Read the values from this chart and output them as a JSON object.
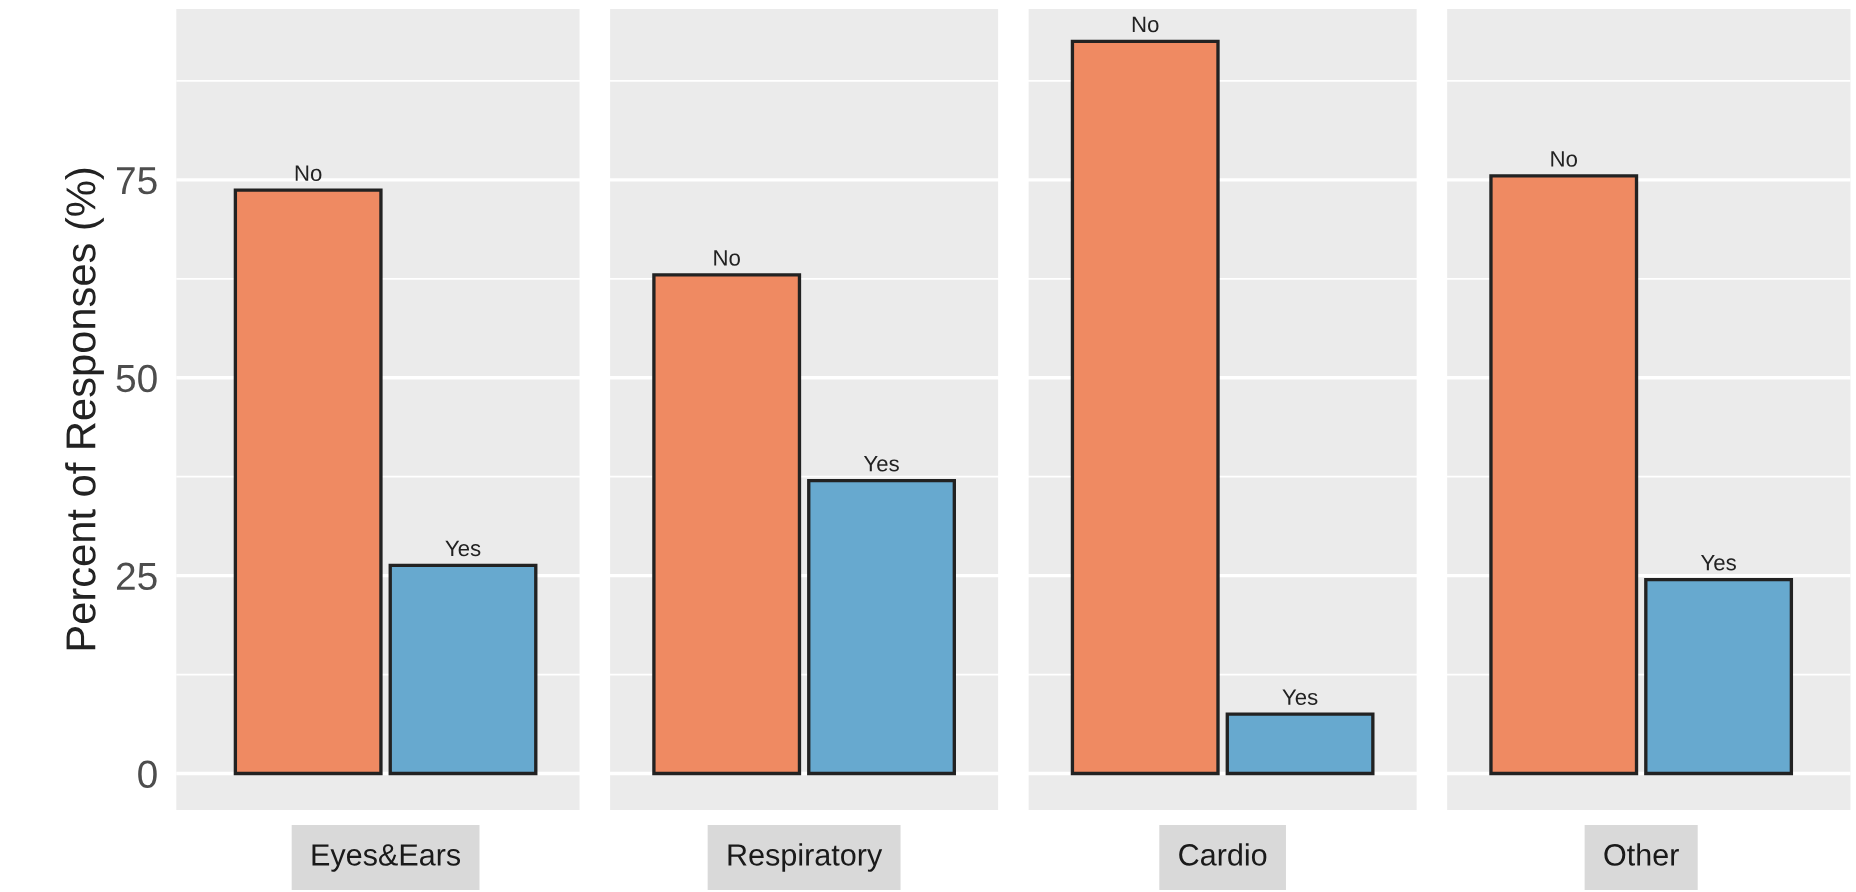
{
  "chart_data": {
    "type": "bar",
    "ylabel": "Percent of Responses (%)",
    "categories": [
      "Eyes&Ears",
      "Respiratory",
      "Cardio",
      "Other"
    ],
    "series": [
      {
        "name": "No",
        "color": "#ef8a62",
        "values": [
          73.7,
          63,
          92.5,
          75.5
        ]
      },
      {
        "name": "Yes",
        "color": "#67a9cf",
        "values": [
          26.3,
          37,
          7.5,
          24.5
        ]
      }
    ],
    "ylim": [
      -4.6,
      96.6
    ],
    "yticks": [
      0,
      25,
      50,
      75
    ],
    "grid": "y"
  }
}
